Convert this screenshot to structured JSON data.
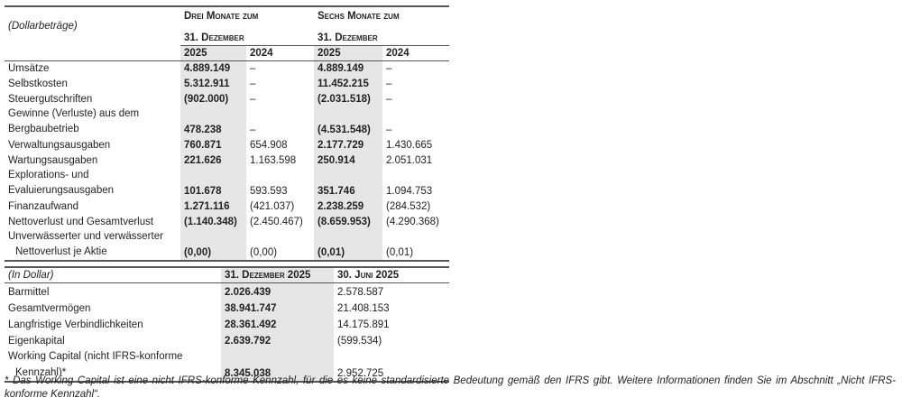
{
  "income_table": {
    "unit_label": "(Dollarbeträge)",
    "group1_title": "Drei Monate zum",
    "group1_date": "31. Dezember",
    "group2_title": "Sechs Monate zum",
    "group2_date": "31. Dezember",
    "years": [
      "2025",
      "2024",
      "2025",
      "2024"
    ],
    "rows": [
      {
        "label": "Umsätze",
        "values": [
          "4.889.149",
          "–",
          "4.889.149",
          "–"
        ]
      },
      {
        "label": "Selbstkosten",
        "values": [
          "5.312.911",
          "–",
          "11.452.215",
          "–"
        ]
      },
      {
        "label": "Steuergutschriften",
        "values": [
          "(902.000)",
          "–",
          "(2.031.518)",
          "–"
        ]
      },
      {
        "label": "Gewinne (Verluste) aus dem",
        "label2": "Bergbaubetrieb",
        "values": [
          "478.238",
          "–",
          "(4.531.548)",
          "–"
        ]
      },
      {
        "label": "Verwaltungsausgaben",
        "values": [
          "760.871",
          "654.908",
          "2.177.729",
          "1.430.665"
        ]
      },
      {
        "label": "Wartungsausgaben",
        "values": [
          "221.626",
          "1.163.598",
          "250.914",
          "2.051.031"
        ]
      },
      {
        "label": "Explorations- und",
        "label2": "Evaluierungsausgaben",
        "values": [
          "101.678",
          "593.593",
          "351.746",
          "1.094.753"
        ]
      },
      {
        "label": "Finanzaufwand",
        "values": [
          "1.271.116",
          "(421.037)",
          "2.238.259",
          "(284.532)"
        ]
      },
      {
        "label": "Nettoverlust und Gesamtverlust",
        "values": [
          "(1.140.348)",
          "(2.450.467)",
          "(8.659.953)",
          "(4.290.368)"
        ]
      },
      {
        "label": "Unverwässerter und verwässerter",
        "label2": "Nettoverlust je Aktie",
        "values": [
          "(0,00)",
          "(0,00)",
          "(0,01)",
          "(0,01)"
        ]
      }
    ]
  },
  "balance_table": {
    "unit_label": "(In Dollar)",
    "col1": "31. Dezember 2025",
    "col2": "30. Juni 2025",
    "rows": [
      {
        "label": "Barmittel",
        "values": [
          "2.026.439",
          "2.578.587"
        ]
      },
      {
        "label": "Gesamtvermögen",
        "values": [
          "38.941.747",
          "21.408.153"
        ]
      },
      {
        "label": "Langfristige Verbindlichkeiten",
        "values": [
          "28.361.492",
          "14.175.891"
        ]
      },
      {
        "label": "Eigenkapital",
        "values": [
          "2.639.792",
          "(599.534)"
        ]
      },
      {
        "label": "Working Capital (nicht IFRS-konforme",
        "label2": "Kennzahl)*",
        "values": [
          "8.345.038",
          "2.952.725"
        ]
      }
    ]
  },
  "footnote": "* Das Working Capital ist eine nicht IFRS-konforme Kennzahl, für die es keine standardisierte Bedeutung gemäß den IFRS gibt. Weitere Informationen finden Sie im Abschnitt „Nicht IFRS-konforme Kennzahl“."
}
